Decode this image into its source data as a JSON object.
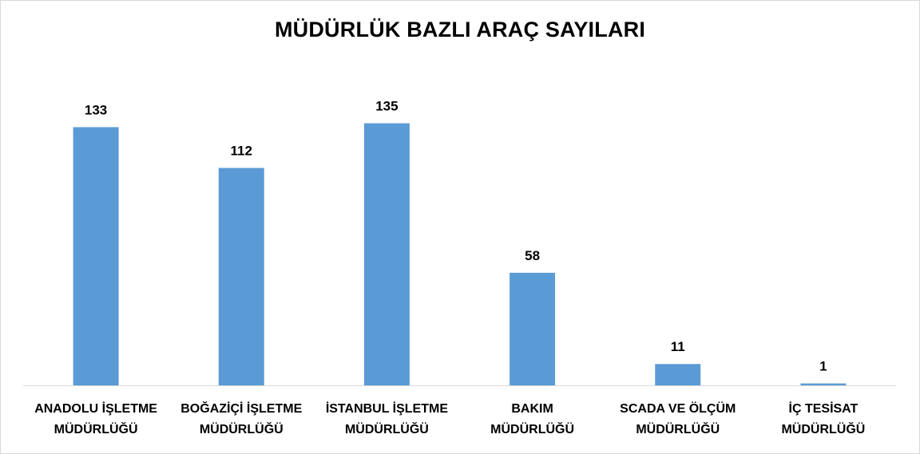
{
  "chart_data": {
    "type": "bar",
    "title": "MÜDÜRLÜK  BAZLI ARAÇ SAYILARI",
    "categories": [
      [
        "ANADOLU İŞLETME",
        "MÜDÜRLÜĞÜ"
      ],
      [
        "BOĞAZİÇİ İŞLETME",
        "MÜDÜRLÜĞÜ"
      ],
      [
        "İSTANBUL İŞLETME",
        "MÜDÜRLÜĞÜ"
      ],
      [
        "BAKIM",
        "MÜDÜRLÜĞÜ"
      ],
      [
        "SCADA VE ÖLÇÜM",
        "MÜDÜRLÜĞÜ"
      ],
      [
        "İÇ TESİSAT",
        "MÜDÜRLÜĞÜ"
      ]
    ],
    "values": [
      133,
      112,
      135,
      58,
      11,
      1
    ],
    "ylim": [
      0,
      150
    ],
    "grid": false,
    "legend": "none",
    "bar_color": "#5b9bd5",
    "axis_color": "#d9d9d9",
    "label_color": "#000000"
  }
}
